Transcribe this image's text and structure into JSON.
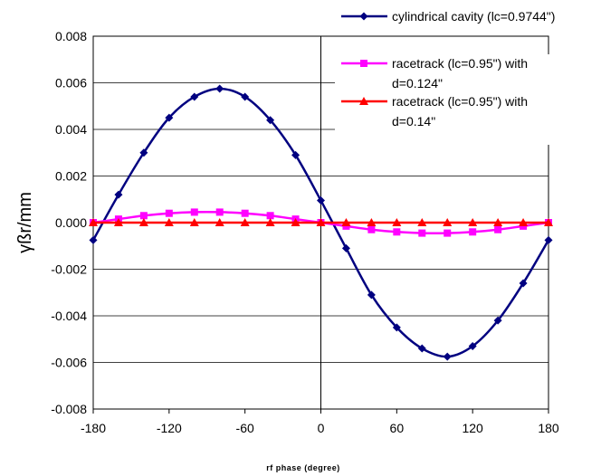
{
  "chart_data": {
    "type": "line",
    "xlabel": "rf phase (degree)",
    "ylabel": "γßr/mm",
    "xlim": [
      -180,
      180
    ],
    "ylim": [
      -0.008,
      0.008
    ],
    "x_ticks": [
      -180,
      -120,
      -60,
      0,
      60,
      120,
      180
    ],
    "x_tick_labels": [
      "-180",
      "-120",
      "-60",
      "0",
      "60",
      "120",
      "180"
    ],
    "y_ticks": [
      0.008,
      0.006,
      0.004,
      0.002,
      0.0,
      -0.002,
      -0.004,
      -0.006,
      -0.008
    ],
    "y_tick_labels": [
      "0.008",
      "0.006",
      "0.004",
      "0.002",
      "0.000",
      "-0.002",
      "-0.004",
      "-0.006",
      "-0.008"
    ],
    "grid": "horizontal",
    "legend_position": "top-right",
    "x": [
      -180,
      -160,
      -140,
      -120,
      -100,
      -80,
      -60,
      -40,
      -20,
      0,
      20,
      40,
      60,
      80,
      100,
      120,
      140,
      160,
      180
    ],
    "series": [
      {
        "name": "cylindrical cavity (lc=0.9744\")",
        "color": "#000080",
        "marker": "diamond",
        "values": [
          -0.00075,
          0.0012,
          0.003,
          0.0045,
          0.0054,
          0.00575,
          0.0054,
          0.0044,
          0.0029,
          0.00095,
          -0.0011,
          -0.0031,
          -0.0045,
          -0.0054,
          -0.00575,
          -0.0053,
          -0.0042,
          -0.0026,
          -0.00075
        ]
      },
      {
        "name": "racetrack (lc=0.95\") with d=0.124\"",
        "name_lines": [
          "racetrack (lc=0.95\") with",
          "d=0.124\""
        ],
        "color": "#ff00ff",
        "marker": "square",
        "values": [
          0.0,
          0.00015,
          0.0003,
          0.0004,
          0.00045,
          0.00045,
          0.0004,
          0.0003,
          0.00015,
          0.0,
          -0.00015,
          -0.0003,
          -0.0004,
          -0.00045,
          -0.00045,
          -0.0004,
          -0.0003,
          -0.00015,
          0.0
        ]
      },
      {
        "name": "racetrack (lc=0.95\") with d=0.14\"",
        "name_lines": [
          "racetrack (lc=0.95\") with",
          "d=0.14\""
        ],
        "color": "#ff0000",
        "marker": "triangle",
        "values": [
          0.0,
          0.0,
          0.0,
          0.0,
          0.0,
          0.0,
          0.0,
          0.0,
          0.0,
          0.0,
          0.0,
          0.0,
          0.0,
          0.0,
          0.0,
          0.0,
          0.0,
          0.0,
          0.0
        ]
      }
    ]
  }
}
